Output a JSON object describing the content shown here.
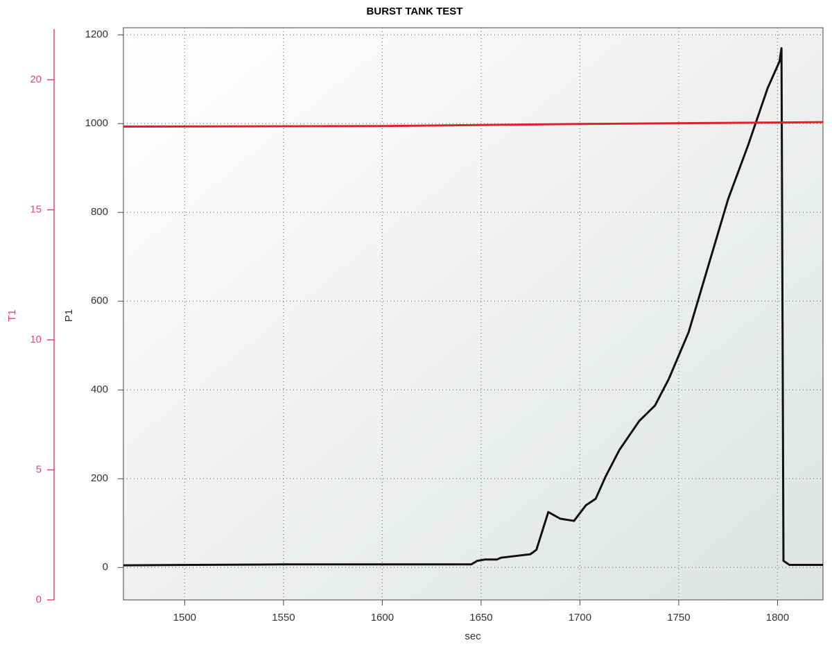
{
  "chart_data": {
    "type": "line",
    "title": "BURST TANK TEST",
    "xlabel": "sec",
    "ylabel": "P1",
    "y2label": "T1",
    "xlim": [
      1469,
      1823
    ],
    "xticks": [
      1500,
      1550,
      1600,
      1650,
      1700,
      1750,
      1800
    ],
    "ylim": [
      -73,
      1216
    ],
    "yticks": [
      0,
      200,
      400,
      600,
      800,
      1000,
      1200
    ],
    "y2lim": [
      0,
      22
    ],
    "y2ticks": [
      0,
      5,
      10,
      15,
      20
    ],
    "y2color": "#e0457a",
    "grid": true,
    "series": [
      {
        "name": "P1",
        "color": "#111111",
        "x": [
          1469,
          1550,
          1645,
          1648,
          1652,
          1658,
          1660,
          1675,
          1678,
          1684,
          1690,
          1697,
          1703,
          1708,
          1713,
          1720,
          1730,
          1738,
          1745,
          1755,
          1765,
          1775,
          1785,
          1795,
          1801,
          1802,
          1803,
          1806,
          1823
        ],
        "values": [
          5,
          7,
          7,
          15,
          18,
          18,
          22,
          30,
          40,
          125,
          110,
          105,
          140,
          155,
          205,
          265,
          330,
          365,
          425,
          530,
          680,
          830,
          950,
          1080,
          1140,
          1170,
          15,
          6,
          6
        ]
      },
      {
        "name": "T1",
        "color": "#e0202a",
        "axis": "y2",
        "x": [
          1469,
          1600,
          1700,
          1823
        ],
        "values": [
          18.2,
          18.22,
          18.3,
          18.37
        ]
      }
    ]
  }
}
